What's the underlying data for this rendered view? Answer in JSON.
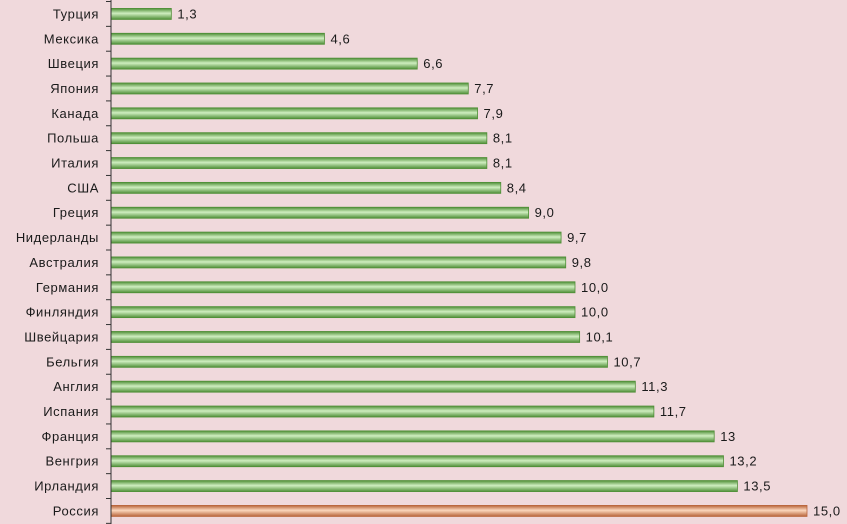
{
  "chart_data": {
    "type": "bar",
    "orientation": "horizontal",
    "title": "",
    "xlabel": "",
    "ylabel": "",
    "xlim": [
      0,
      15
    ],
    "grid": false,
    "categories": [
      "Турция",
      "Мексика",
      "Швеция",
      "Япония",
      "Канада",
      "Польша",
      "Италия",
      "США",
      "Греция",
      "Нидерланды",
      "Австралия",
      "Германия",
      "Финляндия",
      "Швейцария",
      "Бельгия",
      "Англия",
      "Испания",
      "Франция",
      "Венгрия",
      "Ирландия",
      "Россия"
    ],
    "values": [
      1.3,
      4.6,
      6.6,
      7.7,
      7.9,
      8.1,
      8.1,
      8.4,
      9.0,
      9.7,
      9.8,
      10.0,
      10.0,
      10.1,
      10.7,
      11.3,
      11.7,
      13,
      13.2,
      13.5,
      15.0
    ],
    "value_labels": [
      "1,3",
      "4,6",
      "6,6",
      "7,7",
      "7,9",
      "8,1",
      "8,1",
      "8,4",
      "9,0",
      "9,7",
      "9,8",
      "10,0",
      "10,0",
      "10,1",
      "10,7",
      "11,3",
      "11,7",
      "13",
      "13,2",
      "13,5",
      "15,0"
    ],
    "highlight": "Россия",
    "colors": {
      "background": "#f0d9dc",
      "bar": "#7fc062",
      "bar_light": "#cfeec0",
      "bar_dark": "#4f8f37",
      "highlight": "#e49a66",
      "highlight_light": "#fbd7bd",
      "highlight_dark": "#b8643a",
      "axis": "#333333"
    }
  }
}
